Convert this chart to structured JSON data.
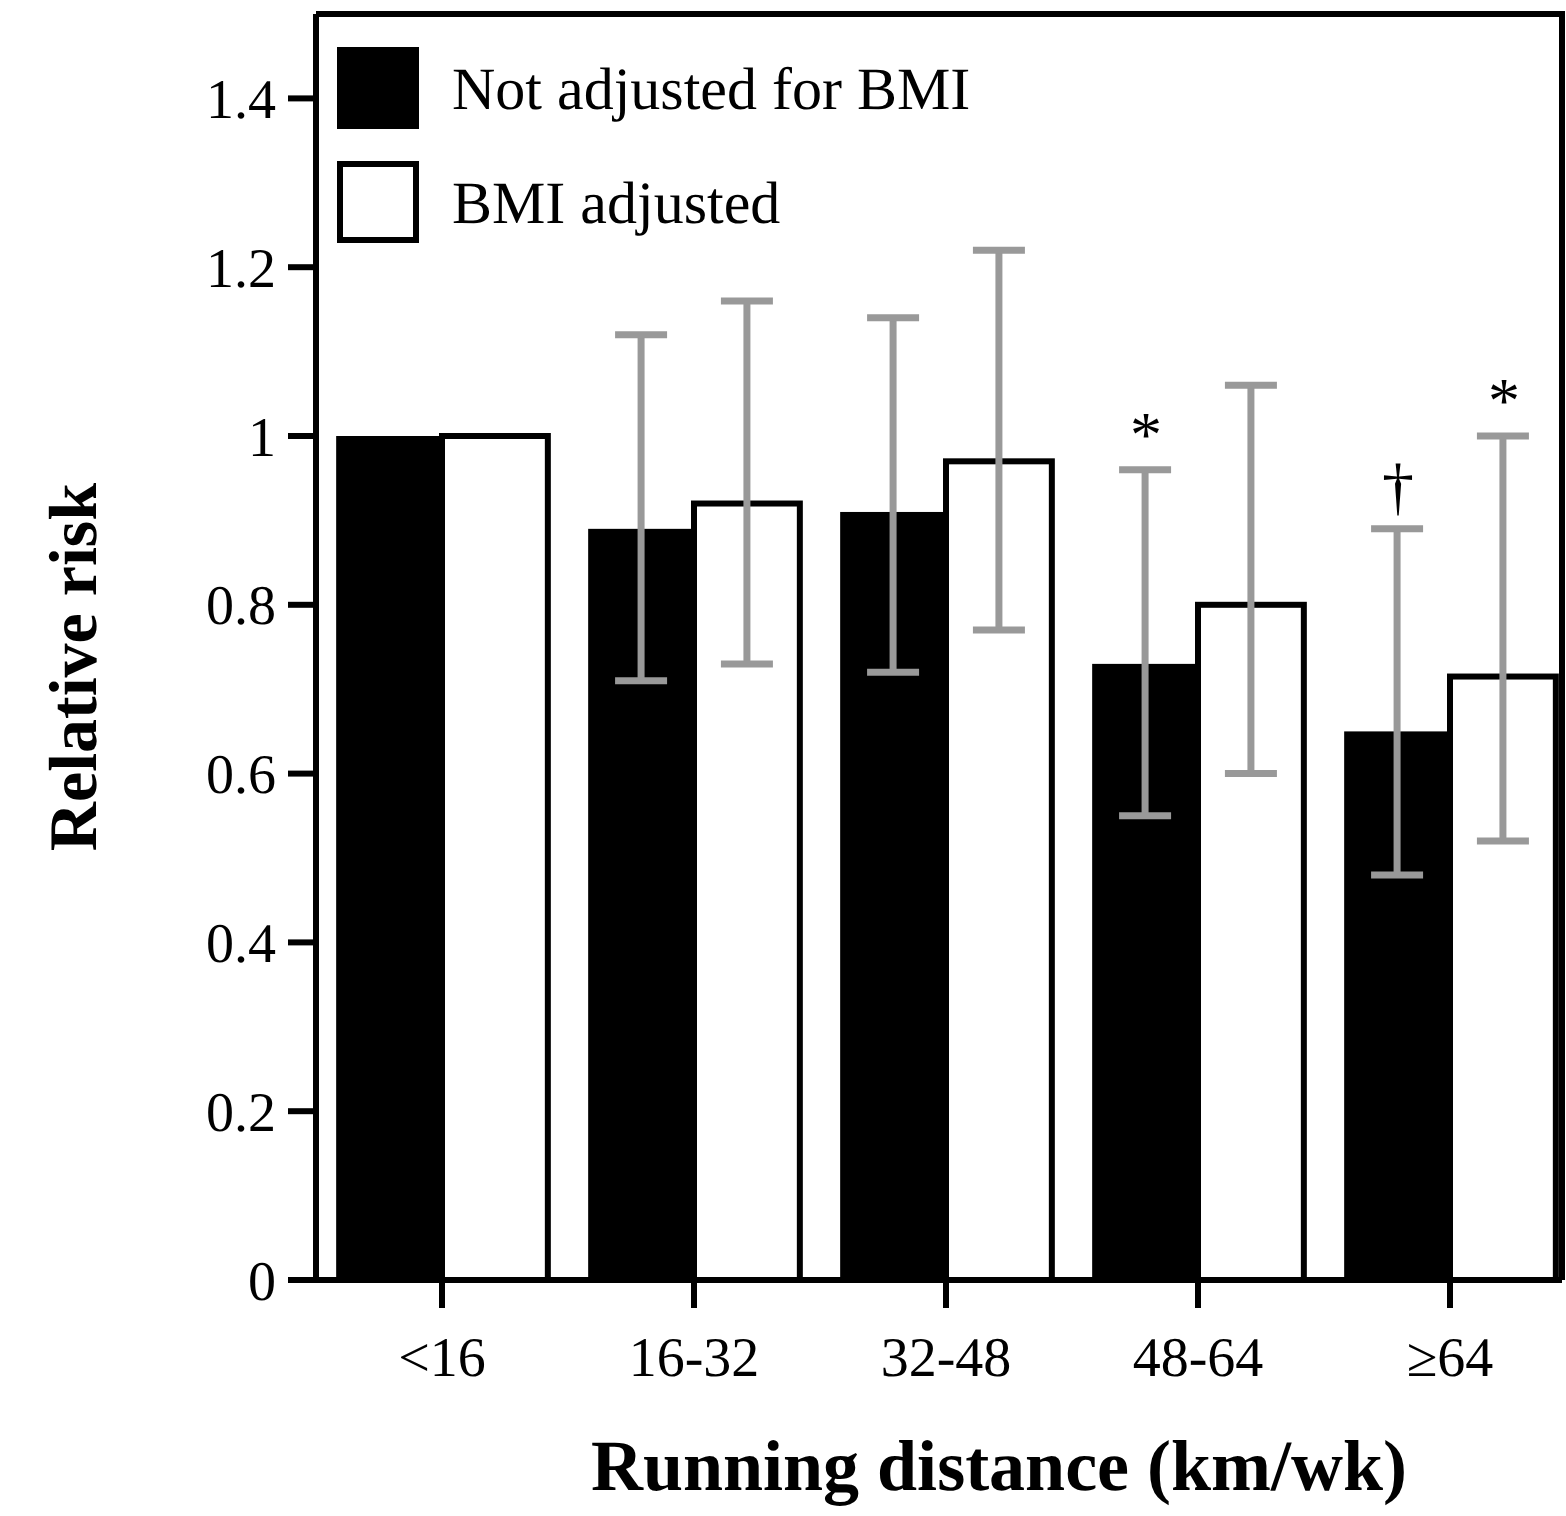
{
  "chart_data": {
    "type": "bar",
    "xlabel": "Running distance (km/wk)",
    "ylabel": "Relative risk",
    "categories": [
      "<16",
      "16-32",
      "32-48",
      "48-64",
      "≥64"
    ],
    "series": [
      {
        "name": "Not adjusted for BMI",
        "color": "#000000",
        "values": [
          1,
          0.89,
          0.91,
          0.73,
          0.65
        ],
        "errors": [
          null,
          [
            0.71,
            1.12
          ],
          [
            0.72,
            1.14
          ],
          [
            0.55,
            0.96
          ],
          [
            0.48,
            0.89
          ]
        ]
      },
      {
        "name": "BMI adjusted",
        "color": "#ffffff",
        "values": [
          1,
          0.92,
          0.97,
          0.8,
          0.715
        ],
        "errors": [
          null,
          [
            0.73,
            1.16
          ],
          [
            0.77,
            1.22
          ],
          [
            0.6,
            1.06
          ],
          [
            0.52,
            1.0
          ]
        ]
      }
    ],
    "ylim": [
      0,
      1.5
    ],
    "yticks": [
      0,
      0.2,
      0.4,
      0.6,
      0.8,
      1,
      1.2,
      1.4
    ],
    "grid": false,
    "legend": "top left",
    "annotations": [
      "*",
      "†",
      "*"
    ]
  }
}
